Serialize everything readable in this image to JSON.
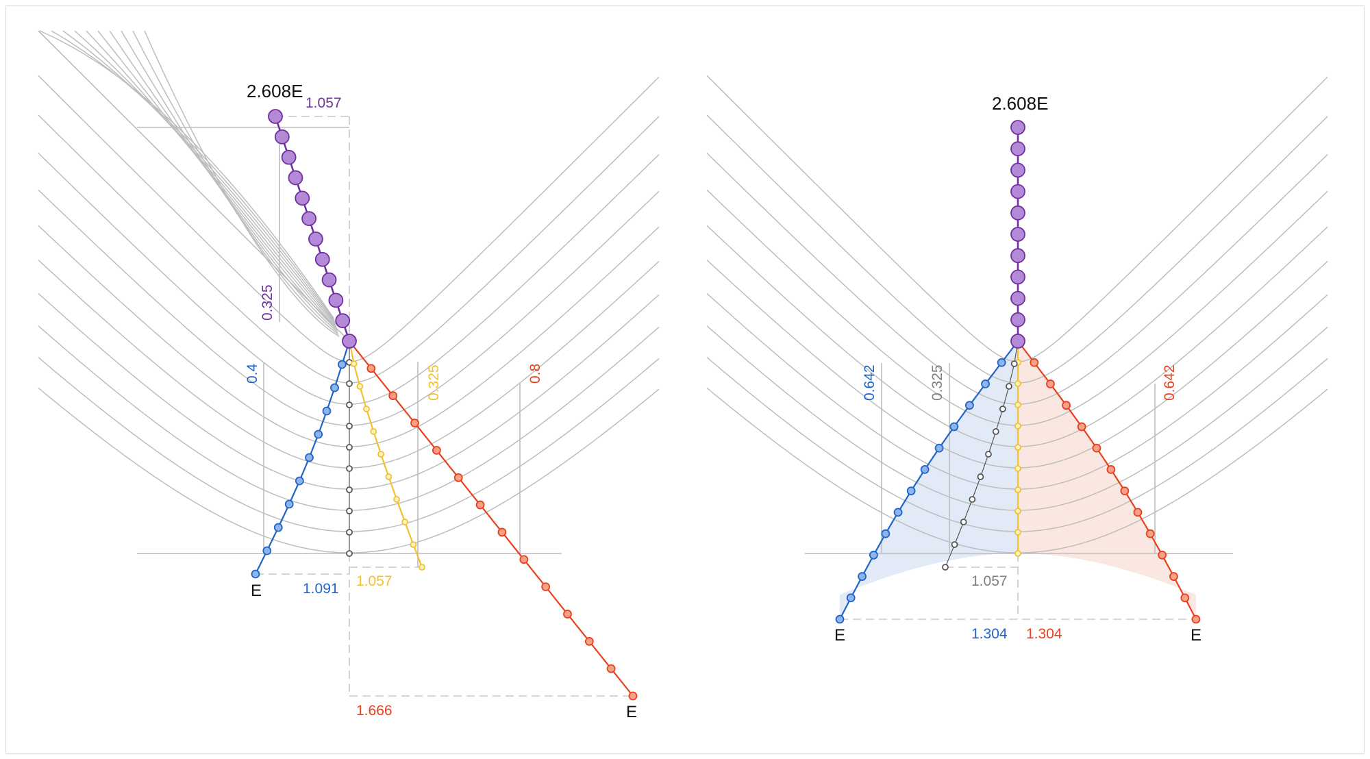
{
  "colors": {
    "purple": "#7030a0",
    "purple_fill": "#b48ad8",
    "blue": "#1f64c8",
    "blue_fill": "#8fb4ec",
    "red": "#e8401c",
    "red_fill": "#f4a18c",
    "yellow": "#f2c12e",
    "gray": "#7f7f7f",
    "curve": "#bdbdbd",
    "blue_shade": "#dfe8f6",
    "red_shade": "#fbe4df"
  },
  "left_panel": {
    "peak_label": "2.608E",
    "top_width_label": "1.057",
    "top_height_label": "0.325",
    "blue_height_label": "0.4",
    "yellow_height_label": "0.325",
    "red_height_label": "0.8",
    "blue_end_label": "E",
    "blue_width_label": "1.091",
    "yellow_width_label": "1.057",
    "red_width_label": "1.666",
    "red_end_label": "E"
  },
  "right_panel": {
    "peak_label": "2.608E",
    "blue_height_label": "0.642",
    "gray_height_label": "0.325",
    "red_height_label": "0.642",
    "gray_width_label": "1.057",
    "blue_end_label": "E",
    "blue_width_label": "1.304",
    "red_width_label": "1.304",
    "red_end_label": "E"
  }
}
